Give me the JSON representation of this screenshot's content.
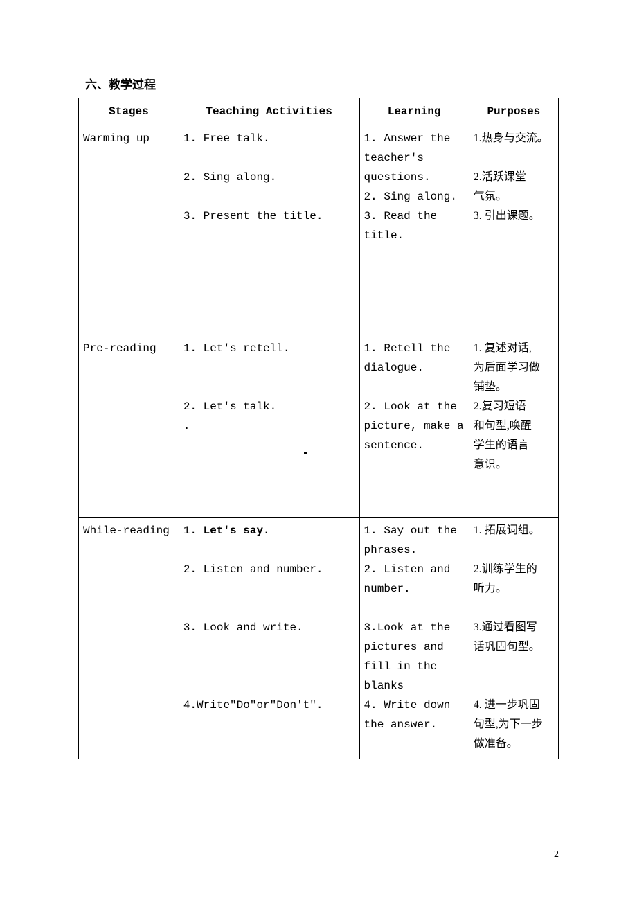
{
  "heading": "六、教学过程",
  "headers": {
    "c0": "Stages",
    "c1": "Teaching Activities",
    "c2": "Learning",
    "c3": "Purposes"
  },
  "rows": [
    {
      "stage": "Warming up",
      "teaching": [
        "1. Free talk.",
        "",
        "2. Sing along.",
        "",
        "3. Present the title."
      ],
      "learning": [
        "1. Answer the",
        "teacher's",
        "questions.",
        "2. Sing along.",
        "3. Read the",
        "title."
      ],
      "purposes": [
        "1.热身与交流。",
        "",
        "2.活跃课堂",
        "气氛。",
        "3. 引出课题。"
      ],
      "minHeight": 290
    },
    {
      "stage": "Pre-reading",
      "teaching": [
        "1.  Let's retell.",
        "",
        "",
        "2.  Let's talk.",
        "."
      ],
      "learning": [
        "1. Retell the",
        "dialogue.",
        "",
        "2.  Look at the",
        "picture, make a",
        "sentence."
      ],
      "purposes": [
        "1. 复述对话,",
        "为后面学习做",
        "铺垫。",
        "2.复习短语",
        "和句型,唤醒",
        "学生的语言",
        "意识。"
      ],
      "minHeight": 250
    },
    {
      "stage": "While-reading",
      "teaching": [
        "1. Let's say.",
        "",
        "2. Listen and number.",
        "",
        "",
        "3. Look and write.",
        "",
        "",
        "",
        "4.Write\"Do\"or\"Don't\"."
      ],
      "learning": [
        "1. Say out the",
        "phrases.",
        "2. Listen and",
        "number.",
        "",
        "3.Look at the",
        "pictures and",
        "fill in the",
        "blanks",
        "4. Write down",
        "the answer."
      ],
      "purposes": [
        "1. 拓展词组。",
        "",
        "2.训练学生的",
        "听力。",
        "",
        "3.通过看图写",
        "话巩固句型。",
        "",
        "",
        "4. 进一步巩固",
        "句型,为下一步",
        "做准备。"
      ],
      "minHeight": 320
    }
  ],
  "pageNumber": "2",
  "boldTeachingFirstRow3": true
}
